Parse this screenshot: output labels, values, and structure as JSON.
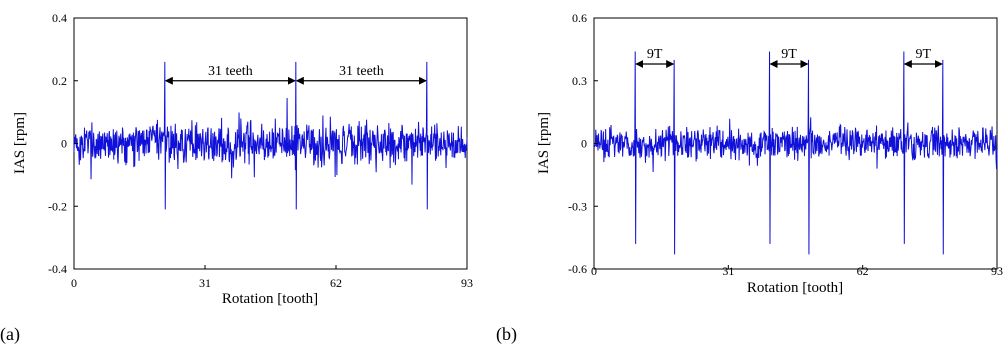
{
  "chart_data": [
    {
      "type": "line",
      "panel_label": "(a)",
      "title": "",
      "xlabel": "Rotation [tooth]",
      "ylabel": "IAS [rpm]",
      "xlim": [
        0,
        93
      ],
      "ylim": [
        -0.4,
        0.4
      ],
      "xticks": [
        0,
        31,
        62,
        93
      ],
      "xtick_labels": [
        "0",
        "31",
        "62",
        "93"
      ],
      "yticks": [
        -0.4,
        -0.2,
        0,
        0.2,
        0.4
      ],
      "ytick_labels": [
        "-0.4",
        "-0.2",
        "0",
        "0.2",
        "0.4"
      ],
      "grid": false,
      "series_color": "#1010d8",
      "noise_amplitude": 0.055,
      "spikes": [
        {
          "x": 21.5,
          "high": 0.26,
          "low": -0.21
        },
        {
          "x": 52.5,
          "high": 0.26,
          "low": -0.21
        },
        {
          "x": 83.5,
          "high": 0.26,
          "low": -0.21
        }
      ],
      "annotations": [
        {
          "text": "31 teeth",
          "x1": 21.5,
          "x2": 52.5,
          "y": 0.2
        },
        {
          "text": "31 teeth",
          "x1": 52.5,
          "x2": 83.5,
          "y": 0.2
        }
      ]
    },
    {
      "type": "line",
      "panel_label": "(b)",
      "title": "",
      "xlabel": "Rotation [tooth]",
      "ylabel": "IAS [rpm]",
      "xlim": [
        0,
        93
      ],
      "ylim": [
        -0.6,
        0.6
      ],
      "xticks": [
        0,
        31,
        62,
        93
      ],
      "xtick_labels": [
        "0",
        "31",
        "62",
        "93"
      ],
      "yticks": [
        -0.6,
        -0.3,
        0,
        0.3,
        0.6
      ],
      "ytick_labels": [
        "-0.6",
        "-0.3",
        "0",
        "0.3",
        "0.6"
      ],
      "grid": false,
      "series_color": "#1010d8",
      "noise_amplitude": 0.06,
      "spikes": [
        {
          "x": 9.5,
          "high": 0.44,
          "low": -0.48
        },
        {
          "x": 18.5,
          "high": 0.4,
          "low": -0.53
        },
        {
          "x": 40.5,
          "high": 0.44,
          "low": -0.48
        },
        {
          "x": 49.5,
          "high": 0.4,
          "low": -0.53
        },
        {
          "x": 71.5,
          "high": 0.44,
          "low": -0.48
        },
        {
          "x": 80.5,
          "high": 0.4,
          "low": -0.53
        }
      ],
      "annotations": [
        {
          "text": "9T",
          "x1": 9.5,
          "x2": 18.5,
          "y": 0.38
        },
        {
          "text": "9T",
          "x1": 40.5,
          "x2": 49.5,
          "y": 0.38
        },
        {
          "text": "9T",
          "x1": 71.5,
          "x2": 80.5,
          "y": 0.38
        }
      ]
    }
  ]
}
